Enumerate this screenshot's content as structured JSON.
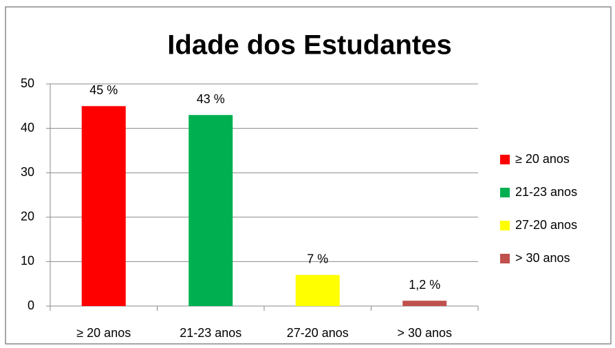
{
  "chart_data": {
    "type": "bar",
    "title": "Idade dos  Estudantes",
    "categories": [
      "≥ 20 anos",
      "21-23 anos",
      "27-20 anos",
      "> 30 anos"
    ],
    "values": [
      45,
      43,
      7,
      1.2
    ],
    "value_labels": [
      "45 %",
      "43 %",
      "7 %",
      "1,2 %"
    ],
    "colors": [
      "#ff0000",
      "#00b050",
      "#ffff00",
      "#c0504d"
    ],
    "ylim": [
      0,
      50
    ],
    "yticks": [
      0,
      10,
      20,
      30,
      40,
      50
    ],
    "grid": true,
    "legend": "right"
  }
}
